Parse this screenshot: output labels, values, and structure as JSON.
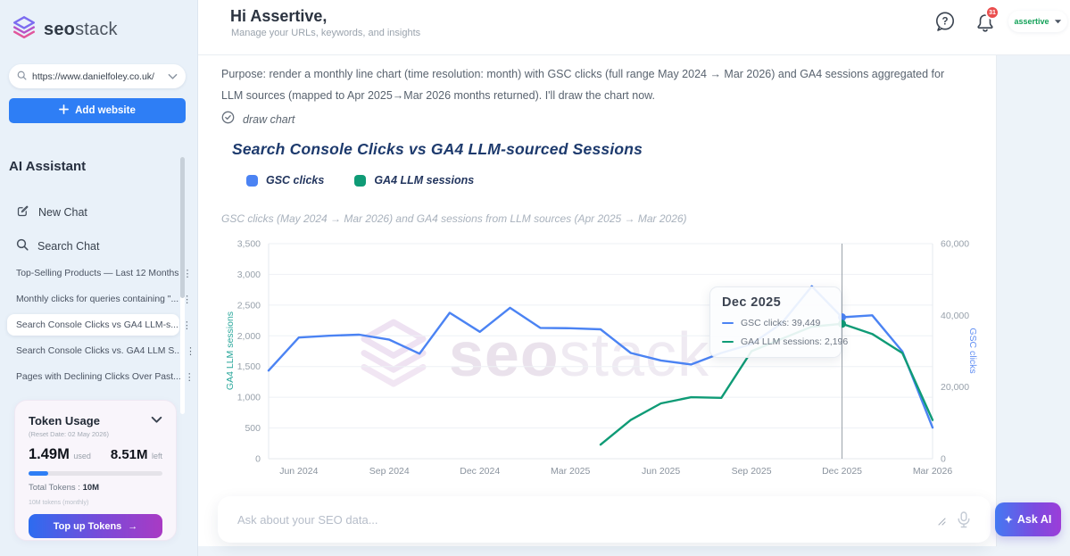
{
  "app": {
    "brand_bold": "seo",
    "brand_light": "stack"
  },
  "sidebar": {
    "url_input": {
      "value": "https://www.danielfoley.co.uk/"
    },
    "add_website_label": "Add website",
    "assistant_title": "AI Assistant",
    "new_chat_label": "New Chat",
    "search_chat_label": "Search Chat",
    "chats": [
      {
        "label": "Top-Selling Products — Last 12 Months",
        "selected": false
      },
      {
        "label": "Monthly clicks for queries containing \"...",
        "selected": false
      },
      {
        "label": "Search Console Clicks vs GA4 LLM-s...",
        "selected": true
      },
      {
        "label": "Search Console Clicks vs. GA4 LLM S...",
        "selected": false
      },
      {
        "label": "Pages with Declining Clicks Over Past...",
        "selected": false
      }
    ],
    "token_usage": {
      "title": "Token Usage",
      "reset_note": "(Reset Date: 02 May 2026)",
      "used_value": "1.49M",
      "used_suffix": "used",
      "left_value": "8.51M",
      "left_suffix": "left",
      "used_percent": 14.9,
      "total_label": "Total Tokens :",
      "total_value": "10M",
      "monthly_note": "10M tokens (monthly)",
      "topup_label": "Top up Tokens"
    }
  },
  "header": {
    "title": "Hi Assertive,",
    "subtitle": "Manage your URLs, keywords, and insights",
    "notification_count": "31",
    "account_label": "assertive"
  },
  "chat": {
    "purpose_text": "Purpose: render a monthly line chart (time resolution: month) with GSC clicks (full range May 2024 → Mar 2026) and GA4 sessions aggregated for LLM sources (mapped to Apr 2025→Mar 2026 months returned). I'll draw the chart now.",
    "tool_status": "draw chart"
  },
  "chart_data": {
    "type": "line",
    "title": "Search Console Clicks vs GA4 LLM-sourced Sessions",
    "subtitle": "GSC clicks (May 2024 → Mar 2026) and GA4 sessions from LLM sources (Apr 2025 → Mar 2026)",
    "x": [
      "May 2024",
      "Jun 2024",
      "Jul 2024",
      "Aug 2024",
      "Sep 2024",
      "Oct 2024",
      "Nov 2024",
      "Dec 2024",
      "Jan 2025",
      "Feb 2025",
      "Mar 2025",
      "Apr 2025",
      "May 2025",
      "Jun 2025",
      "Jul 2025",
      "Aug 2025",
      "Sep 2025",
      "Oct 2025",
      "Nov 2025",
      "Dec 2025",
      "Jan 2026",
      "Feb 2026",
      "Mar 2026"
    ],
    "x_tick_labels": [
      "Jun 2024",
      "Sep 2024",
      "Dec 2024",
      "Mar 2025",
      "Jun 2025",
      "Sep 2025",
      "Dec 2025",
      "Mar 2026"
    ],
    "left_axis": {
      "label": "GA4 LLM sessions",
      "min": 0,
      "max": 3500,
      "tick_step": 500,
      "color": "#2aa79b"
    },
    "right_axis": {
      "label": "GSC clicks",
      "min": 0,
      "max": 60000,
      "ticks": [
        0,
        20000,
        40000,
        60000
      ],
      "color": "#5f8df2"
    },
    "series": [
      {
        "name": "GSC clicks",
        "axis": "right",
        "color": "#4b83f3",
        "values": [
          24600,
          33800,
          34300,
          34600,
          33200,
          29300,
          40700,
          35400,
          42100,
          36500,
          36400,
          36100,
          29500,
          27400,
          26300,
          29500,
          32000,
          37800,
          48100,
          39449,
          40000,
          29900,
          8700
        ]
      },
      {
        "name": "GA4 LLM sessions",
        "axis": "left",
        "color": "#0f9b76",
        "values": [
          null,
          null,
          null,
          null,
          null,
          null,
          null,
          null,
          null,
          null,
          null,
          230,
          630,
          900,
          1000,
          990,
          1750,
          1950,
          2150,
          2196,
          2030,
          1720,
          630
        ]
      }
    ],
    "crosshair_index": 19,
    "grid": true,
    "legend_position": "top"
  },
  "tooltip": {
    "title": "Dec 2025",
    "rows": [
      {
        "label": "GSC clicks",
        "value": "39,449",
        "color": "#4b83f3"
      },
      {
        "label": "GA4 LLM sessions",
        "value": "2,196",
        "color": "#0f9b76"
      }
    ]
  },
  "ask_bar": {
    "placeholder": "Ask about your SEO data...",
    "button_label": "Ask AI"
  }
}
